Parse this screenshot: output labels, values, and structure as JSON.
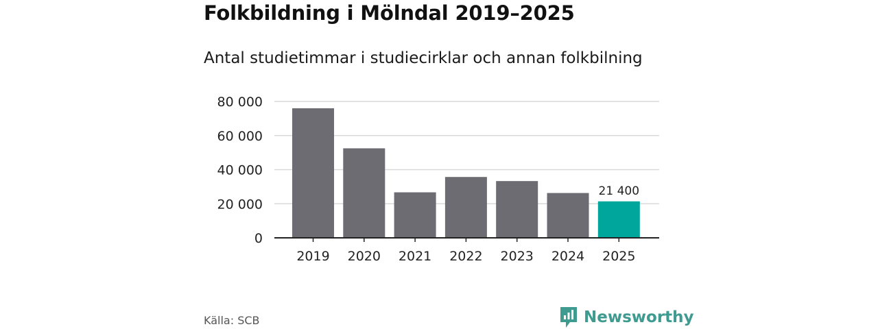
{
  "title": "Folkbildning i Mölndal 2019–2025",
  "subtitle": "Antal studietimmar i studiecirklar och annan folkbilning",
  "source": "Källa: SCB",
  "brand": {
    "name": "Newsworthy",
    "icon": "newsworthy-logo-icon"
  },
  "colors": {
    "bar": "#6d6c72",
    "highlight": "#00a69c",
    "grid": "#d9d9d9",
    "axis": "#222222",
    "brand": "#3f9a8f"
  },
  "chart_data": {
    "type": "bar",
    "title": "Folkbildning i Mölndal 2019–2025",
    "subtitle": "Antal studietimmar i studiecirklar och annan folkbilning",
    "xlabel": "",
    "ylabel": "",
    "categories": [
      "2019",
      "2020",
      "2021",
      "2022",
      "2023",
      "2024",
      "2025"
    ],
    "values": [
      76000,
      52500,
      26700,
      35700,
      33300,
      26300,
      21400
    ],
    "highlight_index": 6,
    "highlight_label": "21 400",
    "ylim": [
      0,
      80000
    ],
    "yticks": [
      0,
      20000,
      40000,
      60000,
      80000
    ],
    "ytick_labels": [
      "0",
      "20 000",
      "40 000",
      "60 000",
      "80 000"
    ],
    "grid": true
  }
}
